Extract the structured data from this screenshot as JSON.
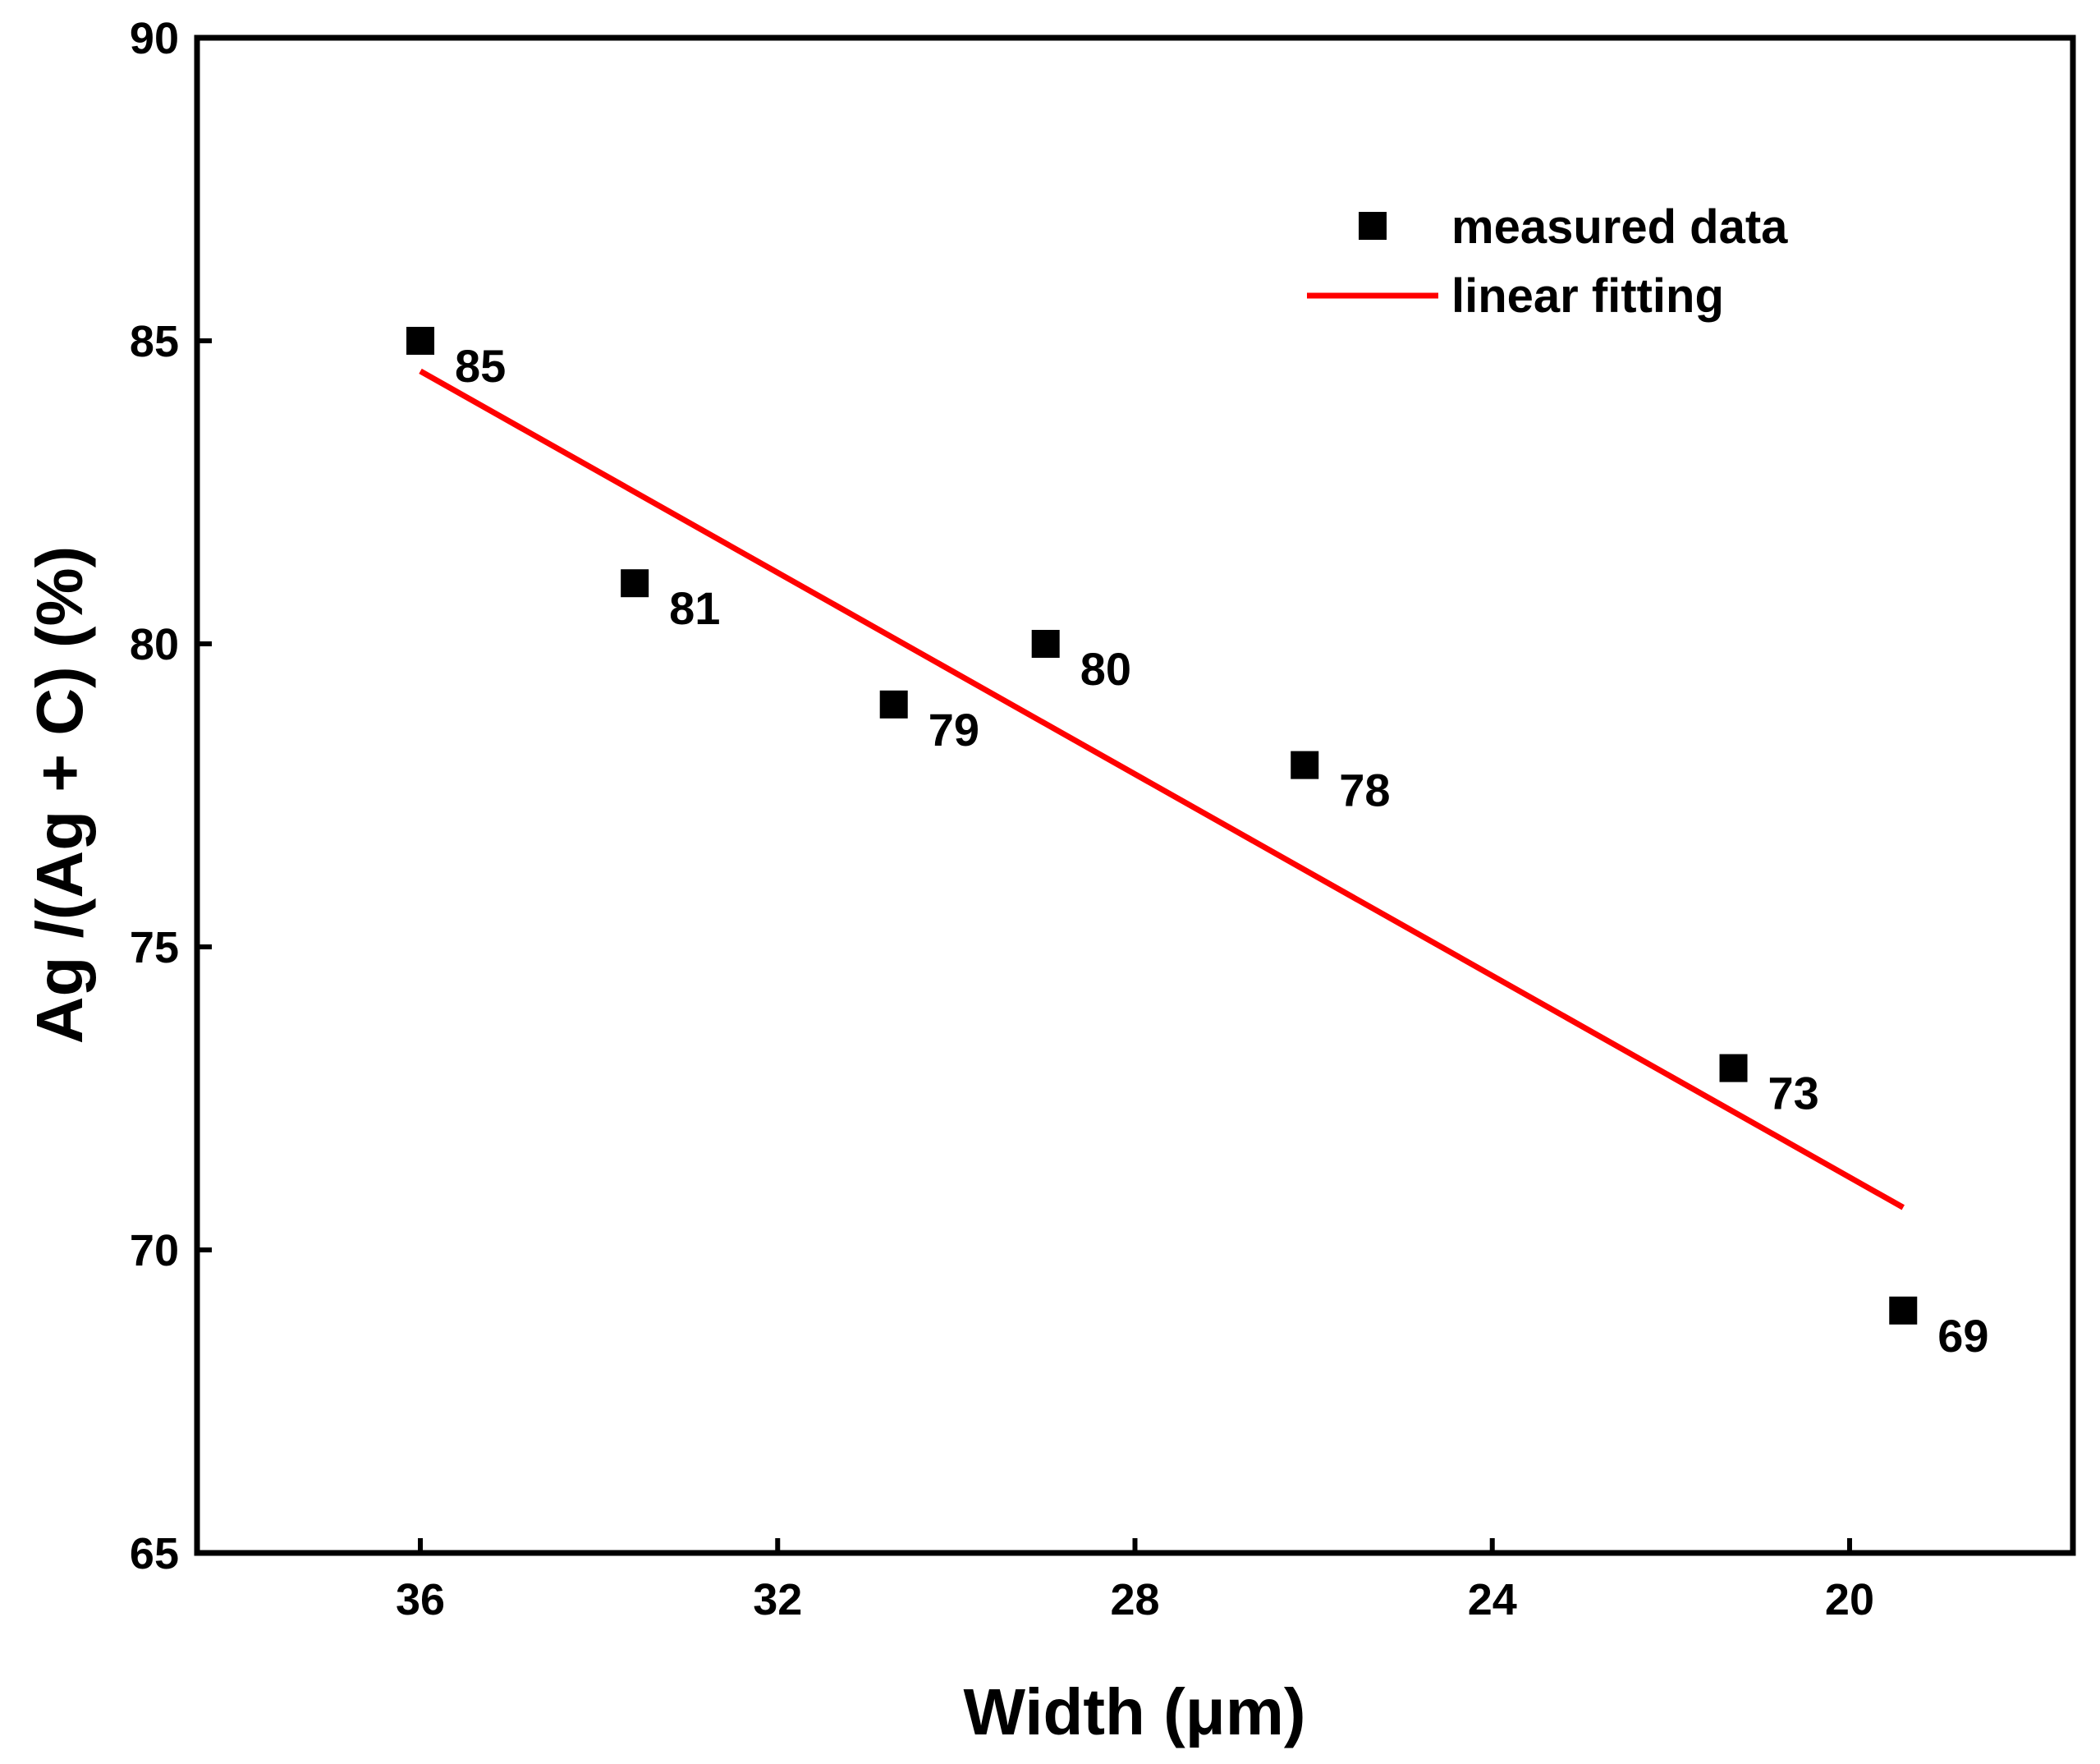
{
  "chart_data": {
    "type": "scatter",
    "xlabel": "Width (μm)",
    "ylabel": "Ag /(Ag + C) (%)",
    "xlim": [
      38.5,
      17.5
    ],
    "ylim": [
      65,
      90
    ],
    "x_reversed": true,
    "xticks": [
      36,
      32,
      28,
      24,
      20
    ],
    "yticks": [
      65,
      70,
      75,
      80,
      85,
      90
    ],
    "grid": false,
    "legend_position": "top-right",
    "series": [
      {
        "name": "measured data",
        "kind": "scatter",
        "marker": "square",
        "color": "#000000",
        "x": [
          36.0,
          33.6,
          30.7,
          29.0,
          26.1,
          21.3,
          19.4
        ],
        "y": [
          85,
          81,
          79,
          80,
          78,
          73,
          69
        ],
        "labels": [
          "85",
          "81",
          "79",
          "80",
          "78",
          "73",
          "69"
        ]
      },
      {
        "name": "linear fitting",
        "kind": "line",
        "color": "#ff0000",
        "x": [
          36.0,
          19.4
        ],
        "y": [
          84.5,
          70.7
        ]
      }
    ]
  }
}
